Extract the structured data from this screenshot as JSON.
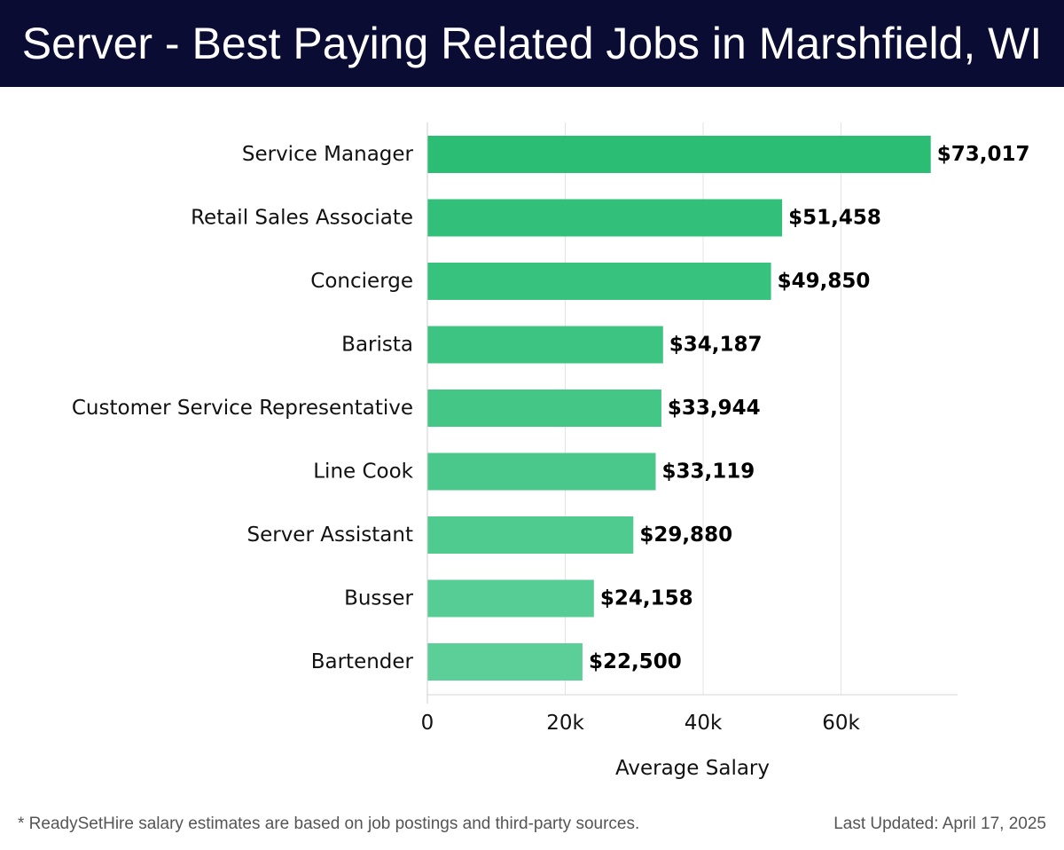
{
  "header": {
    "title": "Server - Best Paying Related Jobs in Marshfield, WI",
    "background_color": "#0b0c33"
  },
  "chart_data": {
    "type": "bar",
    "orientation": "horizontal",
    "categories": [
      "Service Manager",
      "Retail Sales Associate",
      "Concierge",
      "Barista",
      "Customer Service Representative",
      "Line Cook",
      "Server Assistant",
      "Busser",
      "Bartender"
    ],
    "values": [
      73017,
      51458,
      49850,
      34187,
      33944,
      33119,
      29880,
      24158,
      22500
    ],
    "value_labels": [
      "$73,017",
      "$51,458",
      "$49,850",
      "$34,187",
      "$33,944",
      "$33,119",
      "$29,880",
      "$24,158",
      "$22,500"
    ],
    "title": "",
    "xlabel": "Average Salary",
    "ylabel": "",
    "xlim": [
      0,
      76800
    ],
    "xticks": [
      0,
      20000,
      40000,
      60000
    ],
    "xtick_labels": [
      "0",
      "20k",
      "40k",
      "60k"
    ],
    "grid": "vertical",
    "bar_color_top": "#2bbd74",
    "bar_color_bottom": "#5ccf98"
  },
  "footer": {
    "note": "* ReadySetHire salary estimates are based on job postings and third-party sources.",
    "updated": "Last Updated: April 17, 2025"
  }
}
